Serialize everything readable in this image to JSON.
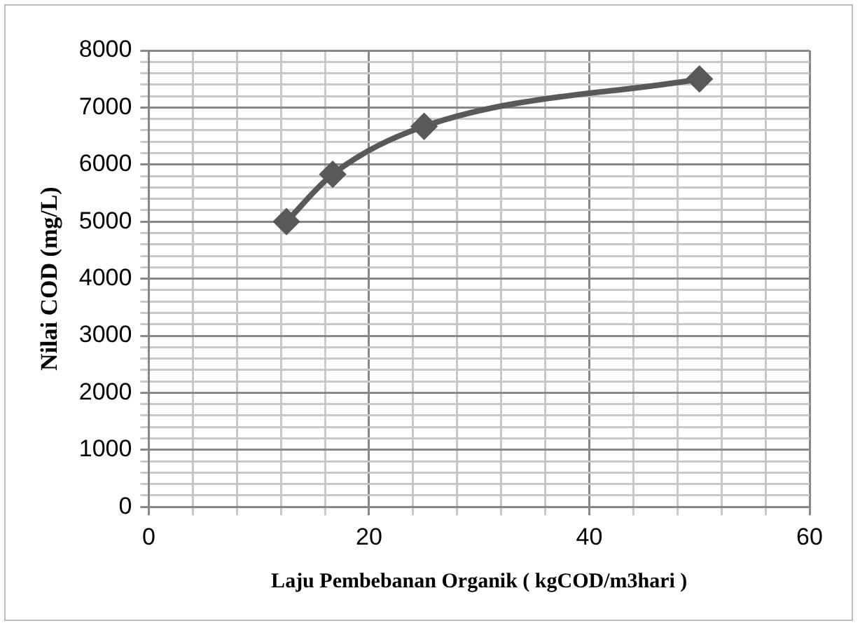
{
  "chart_data": {
    "type": "line",
    "xlabel": "Laju Pembebanan Organik ( kgCOD/m3hari )",
    "ylabel": "Nilai COD (mg/L)",
    "x": [
      12.5,
      16.7,
      25,
      50
    ],
    "series": [
      {
        "color": "#595959",
        "values": [
          5000,
          5830,
          6670,
          7500
        ]
      }
    ],
    "xlim": [
      0,
      60
    ],
    "xticks": [
      0,
      {
        "value": 4,
        "label": null
      },
      {
        "value": 8,
        "label": null
      },
      {
        "value": 12,
        "label": null
      },
      {
        "value": 16,
        "label": null
      },
      20,
      {
        "value": 24,
        "label": null
      },
      {
        "value": 28,
        "label": null
      },
      {
        "value": 32,
        "label": null
      },
      {
        "value": 36,
        "label": null
      },
      40,
      {
        "value": 44,
        "label": null
      },
      {
        "value": 48,
        "label": null
      },
      {
        "value": 52,
        "label": null
      },
      {
        "value": 56,
        "label": null
      },
      60
    ],
    "ylim": [
      0,
      8000
    ],
    "yticks": [
      0,
      {
        "value": 200,
        "label": null
      },
      {
        "value": 400,
        "label": null
      },
      {
        "value": 600,
        "label": null
      },
      {
        "value": 800,
        "label": null
      },
      1000,
      {
        "value": 1200,
        "label": null
      },
      {
        "value": 1400,
        "label": null
      },
      {
        "value": 1600,
        "label": null
      },
      {
        "value": 1800,
        "label": null
      },
      2000,
      {
        "value": 2200,
        "label": null
      },
      {
        "value": 2400,
        "label": null
      },
      {
        "value": 2600,
        "label": null
      },
      {
        "value": 2800,
        "label": null
      },
      3000,
      {
        "value": 3200,
        "label": null
      },
      {
        "value": 3400,
        "label": null
      },
      {
        "value": 3600,
        "label": null
      },
      {
        "value": 3800,
        "label": null
      },
      4000,
      {
        "value": 4200,
        "label": null
      },
      {
        "value": 4400,
        "label": null
      },
      {
        "value": 4600,
        "label": null
      },
      {
        "value": 4800,
        "label": null
      },
      5000,
      {
        "value": 5200,
        "label": null
      },
      {
        "value": 5400,
        "label": null
      },
      {
        "value": 5600,
        "label": null
      },
      {
        "value": 5800,
        "label": null
      },
      6000,
      {
        "value": 6200,
        "label": null
      },
      {
        "value": 6400,
        "label": null
      },
      {
        "value": 6600,
        "label": null
      },
      {
        "value": 6800,
        "label": null
      },
      7000,
      {
        "value": 7200,
        "label": null
      },
      {
        "value": 7400,
        "label": null
      },
      {
        "value": 7600,
        "label": null
      },
      {
        "value": 7800,
        "label": null
      },
      8000
    ],
    "grid": true,
    "legend": false,
    "marker": "diamond",
    "line_style": "solid"
  }
}
